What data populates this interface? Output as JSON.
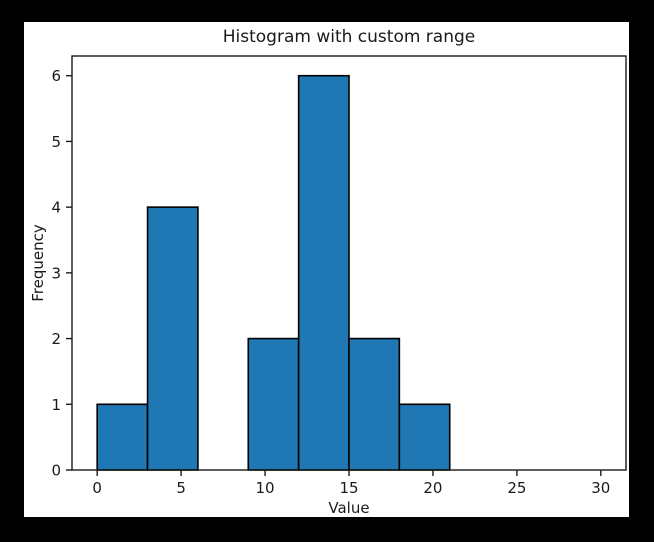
{
  "window": {
    "background_color": "#000000",
    "figure_background_color": "#ffffff"
  },
  "chart_data": {
    "type": "bar",
    "subtype": "histogram",
    "title": "Histogram with custom range",
    "xlabel": "Value",
    "ylabel": "Frequency",
    "bin_edges": [
      0,
      3,
      6,
      9,
      12,
      15,
      18,
      21,
      24,
      27,
      30
    ],
    "counts": [
      1,
      4,
      0,
      2,
      6,
      2,
      1,
      0,
      0,
      0
    ],
    "xticks": [
      0,
      5,
      10,
      15,
      20,
      25,
      30
    ],
    "yticks": [
      0,
      1,
      2,
      3,
      4,
      5,
      6
    ],
    "xlim": [
      -1.5,
      31.5
    ],
    "ylim": [
      0,
      6.3
    ],
    "grid": false,
    "legend": "none",
    "bar_color": "#1f77b4",
    "bar_edge_color": "#000000",
    "axis_color": "#1a1a1a"
  }
}
